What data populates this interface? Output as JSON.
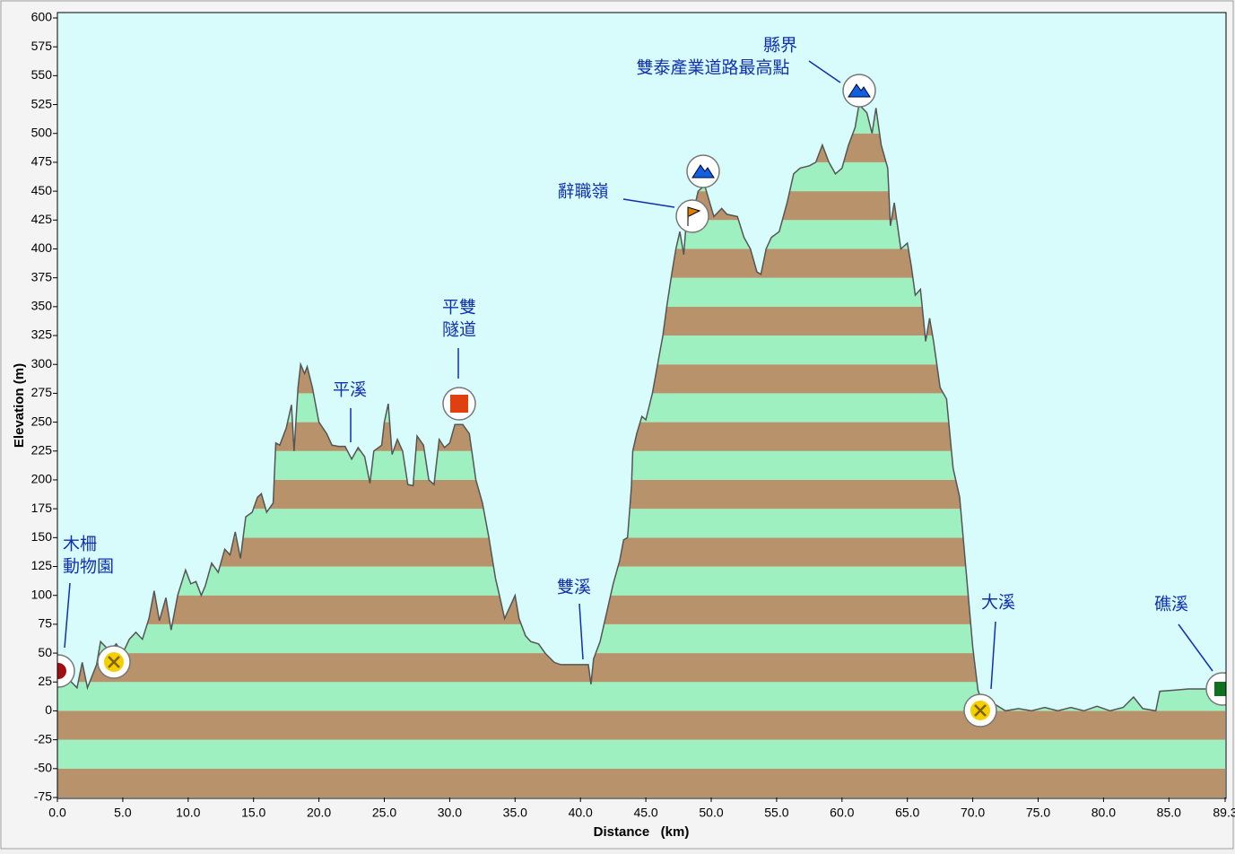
{
  "chart_data": {
    "type": "area",
    "x_label": "Distance   (km)",
    "y_label": "Elevation (m)",
    "x": [
      0,
      0.8,
      1.5,
      1.9,
      2.3,
      3.0,
      3.3,
      4.0,
      4.5,
      5.0,
      5.5,
      6.0,
      6.5,
      7.0,
      7.4,
      7.8,
      8.3,
      8.7,
      9.2,
      9.8,
      10.2,
      10.6,
      11.0,
      11.3,
      11.8,
      12.3,
      12.8,
      13.2,
      13.6,
      14.0,
      14.4,
      14.9,
      15.3,
      15.6,
      16.0,
      16.5,
      16.7,
      17.0,
      17.5,
      17.9,
      18.1,
      18.4,
      18.6,
      18.9,
      19.1,
      19.5,
      20.0,
      20.6,
      21.0,
      21.5,
      22.0,
      22.5,
      23.0,
      23.5,
      23.9,
      24.2,
      24.8,
      25.0,
      25.3,
      25.6,
      26.0,
      26.4,
      26.8,
      27.2,
      27.5,
      28.0,
      28.4,
      28.8,
      29.2,
      29.6,
      30.0,
      30.4,
      31.0,
      31.5,
      32.0,
      32.5,
      33.0,
      33.5,
      33.9,
      34.2,
      34.6,
      35.0,
      35.3,
      35.8,
      36.2,
      36.8,
      37.3,
      38.0,
      38.5,
      39.5,
      40.6,
      40.8,
      41.0,
      41.5,
      42.0,
      42.5,
      43.0,
      43.3,
      43.6,
      43.9,
      44.0,
      44.3,
      44.7,
      45.0,
      45.5,
      45.9,
      46.3,
      46.6,
      47.0,
      47.3,
      47.6,
      47.9,
      48.2,
      48.5,
      49.0,
      49.5,
      50.2,
      50.8,
      51.2,
      52.0,
      52.5,
      53.0,
      53.5,
      53.8,
      54.2,
      54.6,
      55.2,
      55.8,
      56.3,
      56.8,
      57.5,
      58.0,
      58.5,
      59.0,
      59.5,
      60.0,
      60.5,
      61.0,
      61.3,
      61.9,
      62.3,
      62.6,
      63.0,
      63.5,
      63.7,
      64.0,
      64.5,
      65.0,
      65.3,
      65.6,
      66.0,
      66.4,
      66.7,
      67.0,
      67.5,
      68.0,
      68.5,
      69.0,
      69.5,
      70.0,
      70.4,
      70.8,
      71.3,
      71.8,
      72.5,
      73.5,
      74.5,
      75.5,
      76.5,
      77.5,
      78.5,
      79.5,
      80.5,
      81.5,
      82.3,
      83.0,
      84.0,
      84.3,
      85.5,
      86.5,
      88.0,
      89.3
    ],
    "series": [
      {
        "color": "#555555",
        "values": [
          22,
          28,
          20,
          42,
          20,
          40,
          60,
          52,
          58,
          50,
          62,
          68,
          62,
          80,
          104,
          78,
          98,
          70,
          100,
          122,
          110,
          112,
          100,
          108,
          128,
          120,
          140,
          135,
          155,
          132,
          168,
          172,
          185,
          188,
          172,
          180,
          232,
          230,
          245,
          265,
          225,
          280,
          300,
          292,
          298,
          280,
          250,
          240,
          230,
          229,
          229,
          218,
          228,
          220,
          197,
          225,
          230,
          250,
          266,
          222,
          235,
          225,
          196,
          195,
          238,
          230,
          200,
          196,
          235,
          228,
          232,
          248,
          248,
          240,
          200,
          180,
          150,
          115,
          95,
          80,
          90,
          100,
          80,
          65,
          60,
          58,
          50,
          42,
          40,
          40,
          40,
          23,
          45,
          60,
          85,
          110,
          130,
          148,
          150,
          195,
          225,
          240,
          255,
          252,
          275,
          300,
          325,
          350,
          380,
          400,
          415,
          395,
          440,
          425,
          450,
          455,
          428,
          435,
          430,
          428,
          410,
          400,
          380,
          378,
          400,
          410,
          415,
          440,
          465,
          470,
          472,
          475,
          490,
          475,
          465,
          470,
          490,
          505,
          525,
          518,
          500,
          522,
          490,
          470,
          420,
          440,
          400,
          405,
          385,
          360,
          365,
          320,
          340,
          320,
          280,
          270,
          210,
          185,
          120,
          55,
          18,
          5,
          2,
          5,
          0,
          2,
          0,
          3,
          0,
          3,
          0,
          4,
          0,
          3,
          12,
          2,
          0,
          17,
          18,
          19,
          19,
          19
        ]
      }
    ],
    "stripe_colors": [
      "#9ef0c0",
      "#b8926a"
    ],
    "background": "#d8fcfc",
    "xlim": [
      0,
      89.3
    ],
    "ylim": [
      -75,
      600
    ],
    "xticks": [
      {
        "value": 0,
        "label": "0.0"
      },
      {
        "value": 5,
        "label": "5.0"
      },
      {
        "value": 10,
        "label": "10.0"
      },
      {
        "value": 15,
        "label": "15.0"
      },
      {
        "value": 20,
        "label": "20.0"
      },
      {
        "value": 25,
        "label": "25.0"
      },
      {
        "value": 30,
        "label": "30.0"
      },
      {
        "value": 35,
        "label": "35.0"
      },
      {
        "value": 40,
        "label": "40.0"
      },
      {
        "value": 45,
        "label": "45.0"
      },
      {
        "value": 50,
        "label": "50.0"
      },
      {
        "value": 55,
        "label": "55.0"
      },
      {
        "value": 60,
        "label": "60.0"
      },
      {
        "value": 65,
        "label": "65.0"
      },
      {
        "value": 70,
        "label": "70.0"
      },
      {
        "value": 75,
        "label": "75.0"
      },
      {
        "value": 80,
        "label": "80.0"
      },
      {
        "value": 85,
        "label": "85.0"
      },
      89.3
    ],
    "yticks": [
      -75,
      -50,
      -25,
      0,
      25,
      50,
      75,
      100,
      125,
      150,
      175,
      200,
      225,
      250,
      275,
      300,
      325,
      350,
      375,
      400,
      425,
      450,
      475,
      500,
      525,
      550,
      575,
      600
    ],
    "annotations": [
      {
        "text": [
          "木柵",
          "動物園"
        ]
      },
      {
        "text": [
          "平溪"
        ]
      },
      {
        "text": [
          "平雙",
          "隧道"
        ]
      },
      {
        "text": [
          "雙溪"
        ]
      },
      {
        "text": [
          "辭職嶺"
        ]
      },
      {
        "text": [
          "縣界",
          "雙泰產業道路最高點"
        ]
      },
      {
        "text": [
          "大溪"
        ]
      },
      {
        "text": [
          "礁溪"
        ]
      }
    ]
  }
}
